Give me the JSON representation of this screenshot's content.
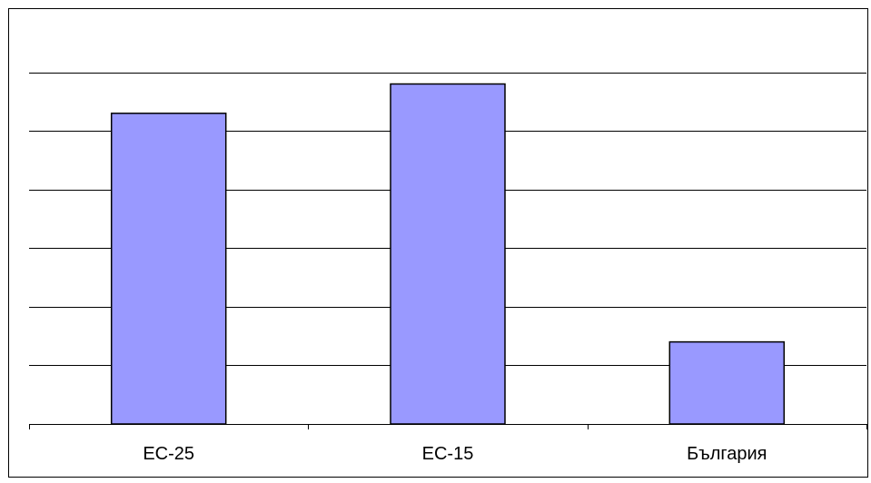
{
  "chart_data": {
    "type": "bar",
    "categories": [
      "ЕС-25",
      "ЕС-15",
      "България"
    ],
    "values": [
      5.3,
      5.8,
      1.4
    ],
    "title": "",
    "xlabel": "",
    "ylabel": "",
    "ylim": [
      0,
      7
    ],
    "grid": true,
    "legend": "none",
    "colors": {
      "bar_fill": "#9999ff",
      "bar_stroke": "#000000",
      "grid": "#000000",
      "background": "#ffffff",
      "frame": "#000000"
    }
  }
}
